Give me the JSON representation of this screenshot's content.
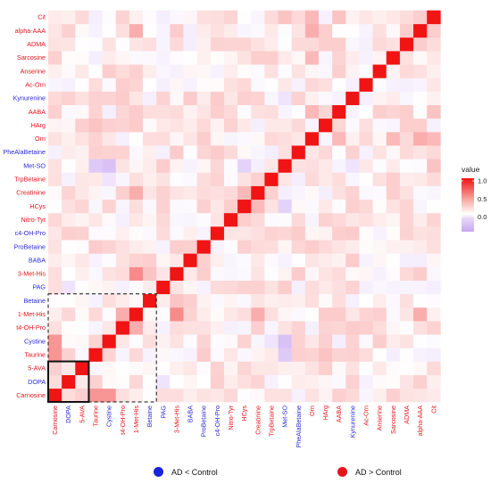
{
  "chart_data": {
    "type": "heatmap",
    "title": "",
    "xlabel": "",
    "ylabel": "",
    "labels": [
      "Carnosine",
      "DOPA",
      "5-AVA",
      "Taurine",
      "Cystine",
      "t4-OH-Pro",
      "1-Met-His",
      "Betaine",
      "PAG",
      "3-Met-His",
      "BABA",
      "ProBetaine",
      "c4-OH-Pro",
      "Nitro-Tyr",
      "HCys",
      "Creatinine",
      "TrpBetaine",
      "Met-SO",
      "PheAlaBetaine",
      "Orn",
      "HArg",
      "AABA",
      "Kynurenine",
      "Ac-Orn",
      "Anserine",
      "Sarcosine",
      "ADMA",
      "alpha-AAA",
      "Cit"
    ],
    "label_groups": [
      "AD > Control",
      "AD < Control",
      "AD > Control",
      "AD > Control",
      "AD < Control",
      "AD > Control",
      "AD > Control",
      "AD < Control",
      "AD < Control",
      "AD > Control",
      "AD < Control",
      "AD < Control",
      "AD < Control",
      "AD > Control",
      "AD > Control",
      "AD > Control",
      "AD > Control",
      "AD < Control",
      "AD < Control",
      "AD > Control",
      "AD > Control",
      "AD > Control",
      "AD < Control",
      "AD > Control",
      "AD > Control",
      "AD > Control",
      "AD > Control",
      "AD > Control",
      "AD > Control"
    ],
    "diagonal_value": 1.0,
    "notable_correlations": [
      {
        "a": "Carnosine",
        "b": "DOPA",
        "value": 0.15
      },
      {
        "a": "Carnosine",
        "b": "5-AVA",
        "value": 0.2
      },
      {
        "a": "DOPA",
        "b": "5-AVA",
        "value": 0.1
      },
      {
        "a": "Carnosine",
        "b": "Taurine",
        "value": 0.45
      },
      {
        "a": "Carnosine",
        "b": "Cystine",
        "value": 0.45
      },
      {
        "a": "Cystine",
        "b": "Met-SO",
        "value": -0.35
      },
      {
        "a": "Cystine",
        "b": "TrpBetaine",
        "value": -0.15
      },
      {
        "a": "Met-SO",
        "b": "Cystine",
        "value": -0.35
      },
      {
        "a": "t4-OH-Pro",
        "b": "1-Met-His",
        "value": 0.35
      },
      {
        "a": "1-Met-His",
        "b": "3-Met-His",
        "value": 0.5
      },
      {
        "a": "1-Met-His",
        "b": "Creatinine",
        "value": 0.35
      },
      {
        "a": "1-Met-His",
        "b": "alpha-AAA",
        "value": 0.35
      },
      {
        "a": "Betaine",
        "b": "3-Met-His",
        "value": 0.25
      },
      {
        "a": "3-Met-His",
        "b": "1-Met-His",
        "value": 0.5
      },
      {
        "a": "Met-SO",
        "b": "Taurine",
        "value": -0.3
      },
      {
        "a": "Met-SO",
        "b": "HCys",
        "value": -0.25
      },
      {
        "a": "Met-SO",
        "b": "Kynurenine",
        "value": -0.15
      },
      {
        "a": "Orn",
        "b": "AABA",
        "value": 0.3
      },
      {
        "a": "Orn",
        "b": "Sarcosine",
        "value": 0.3
      },
      {
        "a": "Orn",
        "b": "alpha-AAA",
        "value": 0.35
      },
      {
        "a": "HArg",
        "b": "Taurine",
        "value": 0.25
      },
      {
        "a": "Cit",
        "b": "Orn",
        "value": 0.3
      },
      {
        "a": "Cit",
        "b": "AABA",
        "value": 0.25
      },
      {
        "a": "Cit",
        "b": "Met-SO",
        "value": 0.25
      },
      {
        "a": "alpha-AAA",
        "b": "Orn",
        "value": 0.35
      },
      {
        "a": "Kynurenine",
        "b": "HCys",
        "value": 0.2
      },
      {
        "a": "Kynurenine",
        "b": "Met-SO",
        "value": -0.15
      },
      {
        "a": "Creatinine",
        "b": "HCys",
        "value": 0.3
      },
      {
        "a": "HCys",
        "b": "Kynurenine",
        "value": 0.2
      },
      {
        "a": "PAG",
        "b": "DOPA",
        "value": -0.15
      },
      {
        "a": "Anserine",
        "b": "1-Met-His",
        "value": 0.2
      },
      {
        "a": "Sarcosine",
        "b": "Carnosine",
        "value": 0.2
      }
    ],
    "colorscale": {
      "title": "value",
      "ticks": [
        "1.0",
        "0.5",
        "0.0"
      ],
      "low": "#c9a6f2",
      "mid": "#ffffff",
      "high": "#f01414"
    },
    "highlight_boxes": [
      {
        "style": "solid",
        "from": "Carnosine",
        "to": "5-AVA"
      },
      {
        "style": "dashed",
        "from": "Carnosine",
        "to": "Betaine"
      }
    ],
    "grid": false,
    "legend_position": "right"
  },
  "bottom_legend": [
    {
      "label": "AD < Control",
      "color": "#1a22e0"
    },
    {
      "label": "AD > Control",
      "color": "#e8141b"
    }
  ],
  "label_colors": {
    "AD > Control": "#e8141b",
    "AD < Control": "#2a2ad8"
  }
}
